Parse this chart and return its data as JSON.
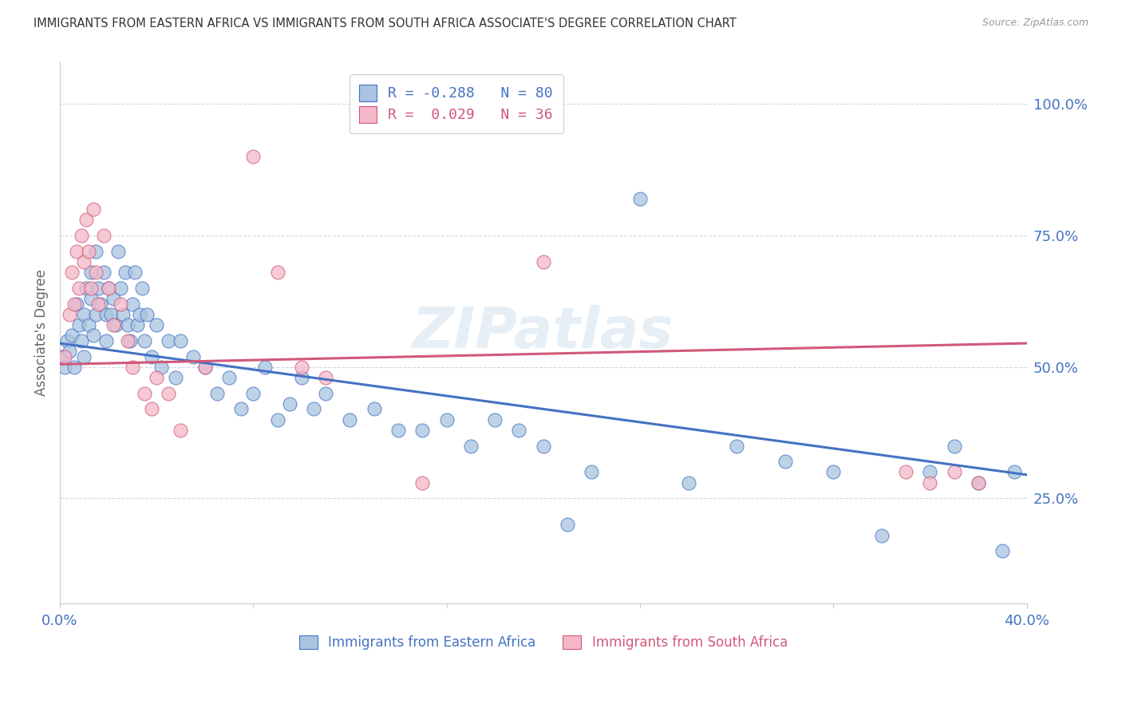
{
  "title": "IMMIGRANTS FROM EASTERN AFRICA VS IMMIGRANTS FROM SOUTH AFRICA ASSOCIATE'S DEGREE CORRELATION CHART",
  "source": "Source: ZipAtlas.com",
  "ylabel": "Associate's Degree",
  "ytick_labels": [
    "25.0%",
    "50.0%",
    "75.0%",
    "100.0%"
  ],
  "ytick_values": [
    0.25,
    0.5,
    0.75,
    1.0
  ],
  "xlim": [
    0.0,
    0.4
  ],
  "ylim": [
    0.05,
    1.08
  ],
  "legend_blue_r": "-0.288",
  "legend_blue_n": "80",
  "legend_pink_r": "0.029",
  "legend_pink_n": "36",
  "legend_label_blue": "Immigrants from Eastern Africa",
  "legend_label_pink": "Immigrants from South Africa",
  "blue_color": "#a8c4e0",
  "pink_color": "#f4b8c8",
  "blue_line_color": "#4472c4",
  "pink_line_color": "#d05878",
  "text_color": "#4472c4",
  "watermark": "ZIPatlas",
  "blue_scatter_x": [
    0.001,
    0.002,
    0.003,
    0.004,
    0.005,
    0.006,
    0.007,
    0.008,
    0.009,
    0.01,
    0.01,
    0.011,
    0.012,
    0.013,
    0.013,
    0.014,
    0.015,
    0.015,
    0.016,
    0.017,
    0.018,
    0.019,
    0.019,
    0.02,
    0.021,
    0.022,
    0.023,
    0.024,
    0.025,
    0.026,
    0.027,
    0.028,
    0.029,
    0.03,
    0.031,
    0.032,
    0.033,
    0.034,
    0.035,
    0.036,
    0.038,
    0.04,
    0.042,
    0.045,
    0.048,
    0.05,
    0.055,
    0.06,
    0.065,
    0.07,
    0.075,
    0.08,
    0.085,
    0.09,
    0.095,
    0.1,
    0.105,
    0.11,
    0.12,
    0.13,
    0.14,
    0.15,
    0.16,
    0.17,
    0.18,
    0.19,
    0.2,
    0.21,
    0.22,
    0.24,
    0.26,
    0.28,
    0.3,
    0.32,
    0.34,
    0.36,
    0.37,
    0.38,
    0.39,
    0.395
  ],
  "blue_scatter_y": [
    0.52,
    0.5,
    0.55,
    0.53,
    0.56,
    0.5,
    0.62,
    0.58,
    0.55,
    0.6,
    0.52,
    0.65,
    0.58,
    0.63,
    0.68,
    0.56,
    0.6,
    0.72,
    0.65,
    0.62,
    0.68,
    0.6,
    0.55,
    0.65,
    0.6,
    0.63,
    0.58,
    0.72,
    0.65,
    0.6,
    0.68,
    0.58,
    0.55,
    0.62,
    0.68,
    0.58,
    0.6,
    0.65,
    0.55,
    0.6,
    0.52,
    0.58,
    0.5,
    0.55,
    0.48,
    0.55,
    0.52,
    0.5,
    0.45,
    0.48,
    0.42,
    0.45,
    0.5,
    0.4,
    0.43,
    0.48,
    0.42,
    0.45,
    0.4,
    0.42,
    0.38,
    0.38,
    0.4,
    0.35,
    0.4,
    0.38,
    0.35,
    0.2,
    0.3,
    0.82,
    0.28,
    0.35,
    0.32,
    0.3,
    0.18,
    0.3,
    0.35,
    0.28,
    0.15,
    0.3
  ],
  "pink_scatter_x": [
    0.002,
    0.004,
    0.005,
    0.006,
    0.007,
    0.008,
    0.009,
    0.01,
    0.011,
    0.012,
    0.013,
    0.014,
    0.015,
    0.016,
    0.018,
    0.02,
    0.022,
    0.025,
    0.028,
    0.03,
    0.035,
    0.038,
    0.04,
    0.045,
    0.05,
    0.06,
    0.08,
    0.09,
    0.1,
    0.11,
    0.15,
    0.2,
    0.35,
    0.36,
    0.37,
    0.38
  ],
  "pink_scatter_y": [
    0.52,
    0.6,
    0.68,
    0.62,
    0.72,
    0.65,
    0.75,
    0.7,
    0.78,
    0.72,
    0.65,
    0.8,
    0.68,
    0.62,
    0.75,
    0.65,
    0.58,
    0.62,
    0.55,
    0.5,
    0.45,
    0.42,
    0.48,
    0.45,
    0.38,
    0.5,
    0.9,
    0.68,
    0.5,
    0.48,
    0.28,
    0.7,
    0.3,
    0.28,
    0.3,
    0.28
  ],
  "blue_trendline_x": [
    0.0,
    0.4
  ],
  "blue_trendline_y": [
    0.545,
    0.295
  ],
  "pink_trendline_x": [
    0.0,
    0.4
  ],
  "pink_trendline_y": [
    0.505,
    0.545
  ]
}
